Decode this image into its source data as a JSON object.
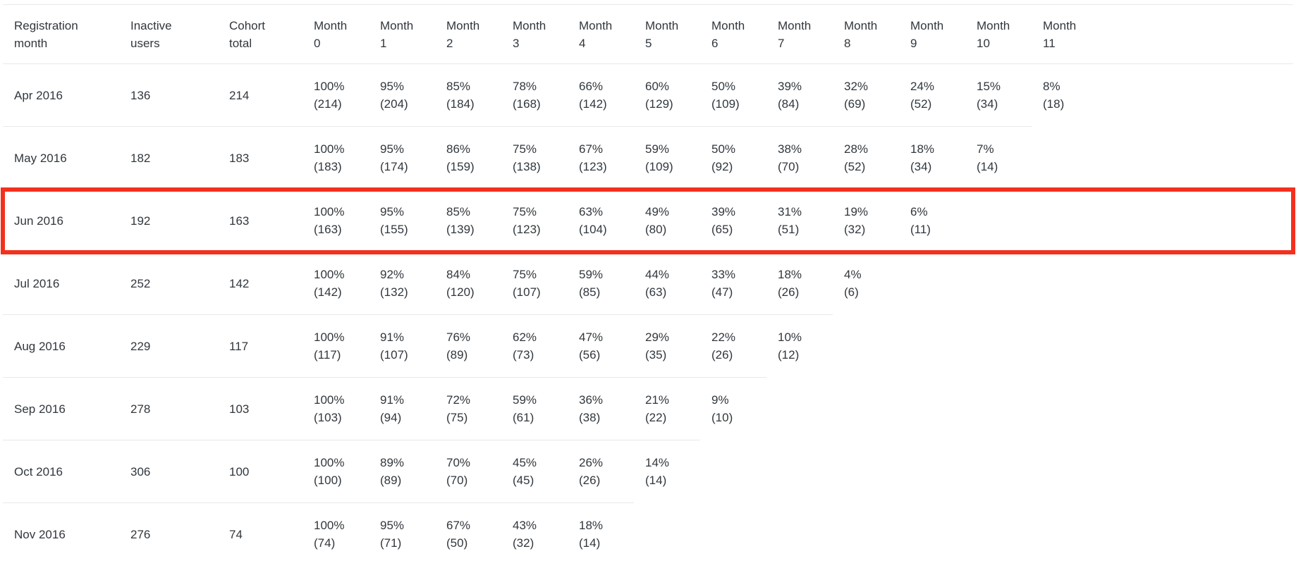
{
  "chart_data": {
    "type": "table",
    "columns": [
      "Registration\nmonth",
      "Inactive\nusers",
      "Cohort\ntotal",
      "Month\n0",
      "Month\n1",
      "Month\n2",
      "Month\n3",
      "Month\n4",
      "Month\n5",
      "Month\n6",
      "Month\n7",
      "Month\n8",
      "Month\n9",
      "Month\n10",
      "Month\n11"
    ],
    "rows": [
      {
        "registration_month": "Apr 2016",
        "inactive_users": "136",
        "cohort_total": "214",
        "highlighted": false,
        "month_cells": [
          {
            "pct": "100%",
            "count": "(214)"
          },
          {
            "pct": "95%",
            "count": "(204)"
          },
          {
            "pct": "85%",
            "count": "(184)"
          },
          {
            "pct": "78%",
            "count": "(168)"
          },
          {
            "pct": "66%",
            "count": "(142)"
          },
          {
            "pct": "60%",
            "count": "(129)"
          },
          {
            "pct": "50%",
            "count": "(109)"
          },
          {
            "pct": "39%",
            "count": "(84)"
          },
          {
            "pct": "32%",
            "count": "(69)"
          },
          {
            "pct": "24%",
            "count": "(52)"
          },
          {
            "pct": "15%",
            "count": "(34)"
          },
          {
            "pct": "8%",
            "count": "(18)"
          }
        ]
      },
      {
        "registration_month": "May 2016",
        "inactive_users": "182",
        "cohort_total": "183",
        "highlighted": false,
        "month_cells": [
          {
            "pct": "100%",
            "count": "(183)"
          },
          {
            "pct": "95%",
            "count": "(174)"
          },
          {
            "pct": "86%",
            "count": "(159)"
          },
          {
            "pct": "75%",
            "count": "(138)"
          },
          {
            "pct": "67%",
            "count": "(123)"
          },
          {
            "pct": "59%",
            "count": "(109)"
          },
          {
            "pct": "50%",
            "count": "(92)"
          },
          {
            "pct": "38%",
            "count": "(70)"
          },
          {
            "pct": "28%",
            "count": "(52)"
          },
          {
            "pct": "18%",
            "count": "(34)"
          },
          {
            "pct": "7%",
            "count": "(14)"
          }
        ]
      },
      {
        "registration_month": "Jun 2016",
        "inactive_users": "192",
        "cohort_total": "163",
        "highlighted": true,
        "month_cells": [
          {
            "pct": "100%",
            "count": "(163)"
          },
          {
            "pct": "95%",
            "count": "(155)"
          },
          {
            "pct": "85%",
            "count": "(139)"
          },
          {
            "pct": "75%",
            "count": "(123)"
          },
          {
            "pct": "63%",
            "count": "(104)"
          },
          {
            "pct": "49%",
            "count": "(80)"
          },
          {
            "pct": "39%",
            "count": "(65)"
          },
          {
            "pct": "31%",
            "count": "(51)"
          },
          {
            "pct": "19%",
            "count": "(32)"
          },
          {
            "pct": "6%",
            "count": "(11)"
          }
        ]
      },
      {
        "registration_month": "Jul 2016",
        "inactive_users": "252",
        "cohort_total": "142",
        "highlighted": false,
        "month_cells": [
          {
            "pct": "100%",
            "count": "(142)"
          },
          {
            "pct": "92%",
            "count": "(132)"
          },
          {
            "pct": "84%",
            "count": "(120)"
          },
          {
            "pct": "75%",
            "count": "(107)"
          },
          {
            "pct": "59%",
            "count": "(85)"
          },
          {
            "pct": "44%",
            "count": "(63)"
          },
          {
            "pct": "33%",
            "count": "(47)"
          },
          {
            "pct": "18%",
            "count": "(26)"
          },
          {
            "pct": "4%",
            "count": "(6)"
          }
        ]
      },
      {
        "registration_month": "Aug 2016",
        "inactive_users": "229",
        "cohort_total": "117",
        "highlighted": false,
        "month_cells": [
          {
            "pct": "100%",
            "count": "(117)"
          },
          {
            "pct": "91%",
            "count": "(107)"
          },
          {
            "pct": "76%",
            "count": "(89)"
          },
          {
            "pct": "62%",
            "count": "(73)"
          },
          {
            "pct": "47%",
            "count": "(56)"
          },
          {
            "pct": "29%",
            "count": "(35)"
          },
          {
            "pct": "22%",
            "count": "(26)"
          },
          {
            "pct": "10%",
            "count": "(12)"
          }
        ]
      },
      {
        "registration_month": "Sep 2016",
        "inactive_users": "278",
        "cohort_total": "103",
        "highlighted": false,
        "month_cells": [
          {
            "pct": "100%",
            "count": "(103)"
          },
          {
            "pct": "91%",
            "count": "(94)"
          },
          {
            "pct": "72%",
            "count": "(75)"
          },
          {
            "pct": "59%",
            "count": "(61)"
          },
          {
            "pct": "36%",
            "count": "(38)"
          },
          {
            "pct": "21%",
            "count": "(22)"
          },
          {
            "pct": "9%",
            "count": "(10)"
          }
        ]
      },
      {
        "registration_month": "Oct 2016",
        "inactive_users": "306",
        "cohort_total": "100",
        "highlighted": false,
        "month_cells": [
          {
            "pct": "100%",
            "count": "(100)"
          },
          {
            "pct": "89%",
            "count": "(89)"
          },
          {
            "pct": "70%",
            "count": "(70)"
          },
          {
            "pct": "45%",
            "count": "(45)"
          },
          {
            "pct": "26%",
            "count": "(26)"
          },
          {
            "pct": "14%",
            "count": "(14)"
          }
        ]
      },
      {
        "registration_month": "Nov 2016",
        "inactive_users": "276",
        "cohort_total": "74",
        "highlighted": false,
        "month_cells": [
          {
            "pct": "100%",
            "count": "(74)"
          },
          {
            "pct": "95%",
            "count": "(71)"
          },
          {
            "pct": "67%",
            "count": "(50)"
          },
          {
            "pct": "43%",
            "count": "(32)"
          },
          {
            "pct": "18%",
            "count": "(14)"
          }
        ]
      }
    ],
    "highlight": {
      "row": "Jun 2016",
      "style": "red-rectangle-annotation"
    }
  },
  "colors": {
    "highlight_border": "#f3301d",
    "grid_line": "#e9e9e9",
    "text": "#31373d",
    "background": "#ffffff"
  }
}
